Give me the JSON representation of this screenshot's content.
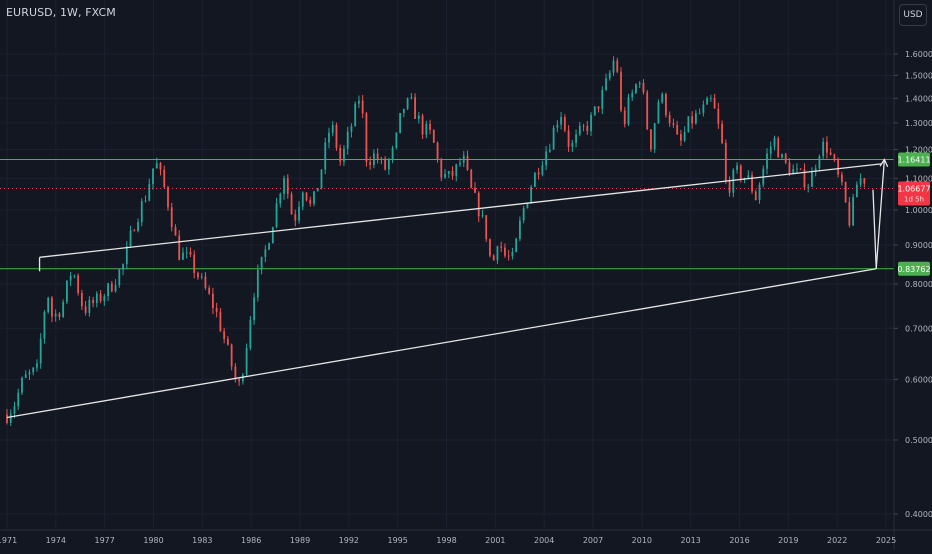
{
  "header": {
    "symbol_title": "EURUSD, 1W, FXCM",
    "currency_button": "USD"
  },
  "colors": {
    "background": "#131722",
    "up": "#26a69a",
    "down": "#ef5350",
    "level_line": "#4caf50",
    "trend_line": "#e6e6e6",
    "last_price": "#f23645"
  },
  "chart_data": {
    "type": "candlestick",
    "symbol": "EURUSD",
    "timeframe": "1W",
    "source": "FXCM",
    "x_axis": {
      "tick_labels": [
        "1971",
        "1974",
        "1977",
        "1980",
        "1983",
        "1986",
        "1989",
        "1992",
        "1995",
        "1998",
        "2001",
        "2004",
        "2007",
        "2010",
        "2013",
        "2016",
        "2019",
        "2022",
        "2025"
      ],
      "range": [
        1971,
        2025
      ]
    },
    "y_axis": {
      "scale": "log",
      "tick_labels": [
        "1.60000",
        "1.50000",
        "1.40000",
        "1.30000",
        "1.20000",
        "1.10000",
        "1.00000",
        "0.90000",
        "0.80000",
        "0.70000",
        "0.60000",
        "0.50000",
        "0.40000"
      ],
      "tick_values": [
        1.6,
        1.5,
        1.4,
        1.3,
        1.2,
        1.1,
        1.0,
        0.9,
        0.8,
        0.7,
        0.6,
        0.5,
        0.4
      ],
      "range": [
        0.385,
        1.8
      ]
    },
    "price_path": [
      [
        1971.0,
        0.54
      ],
      [
        1971.5,
        0.56
      ],
      [
        1972.0,
        0.6
      ],
      [
        1972.5,
        0.61
      ],
      [
        1973.0,
        0.62
      ],
      [
        1973.1,
        0.7
      ],
      [
        1973.5,
        0.78
      ],
      [
        1973.8,
        0.72
      ],
      [
        1974.4,
        0.75
      ],
      [
        1975.0,
        0.84
      ],
      [
        1975.7,
        0.74
      ],
      [
        1976.5,
        0.76
      ],
      [
        1977.3,
        0.79
      ],
      [
        1978.2,
        0.85
      ],
      [
        1978.8,
        0.96
      ],
      [
        1979.5,
        1.04
      ],
      [
        1980.1,
        1.16
      ],
      [
        1980.6,
        1.08
      ],
      [
        1981.0,
        1.0
      ],
      [
        1981.5,
        0.88
      ],
      [
        1982.2,
        0.86
      ],
      [
        1983.0,
        0.8
      ],
      [
        1983.8,
        0.74
      ],
      [
        1984.5,
        0.66
      ],
      [
        1985.2,
        0.58
      ],
      [
        1985.6,
        0.64
      ],
      [
        1986.2,
        0.79
      ],
      [
        1986.8,
        0.87
      ],
      [
        1987.5,
        1.0
      ],
      [
        1988.0,
        1.12
      ],
      [
        1988.6,
        0.96
      ],
      [
        1989.2,
        1.08
      ],
      [
        1989.7,
        1.0
      ],
      [
        1990.2,
        1.1
      ],
      [
        1990.9,
        1.3
      ],
      [
        1991.5,
        1.15
      ],
      [
        1992.2,
        1.3
      ],
      [
        1992.7,
        1.42
      ],
      [
        1993.1,
        1.16
      ],
      [
        1993.6,
        1.18
      ],
      [
        1994.2,
        1.13
      ],
      [
        1994.8,
        1.2
      ],
      [
        1995.3,
        1.36
      ],
      [
        1995.8,
        1.38
      ],
      [
        1996.5,
        1.28
      ],
      [
        1997.1,
        1.25
      ],
      [
        1997.6,
        1.12
      ],
      [
        1998.1,
        1.1
      ],
      [
        1998.5,
        1.12
      ],
      [
        1999.0,
        1.17
      ],
      [
        1999.5,
        1.06
      ],
      [
        2000.0,
        1.0
      ],
      [
        2000.5,
        0.92
      ],
      [
        2000.8,
        0.83
      ],
      [
        2001.1,
        0.92
      ],
      [
        2001.6,
        0.87
      ],
      [
        2002.1,
        0.86
      ],
      [
        2002.6,
        0.98
      ],
      [
        2003.2,
        1.08
      ],
      [
        2003.8,
        1.16
      ],
      [
        2004.3,
        1.22
      ],
      [
        2005.0,
        1.35
      ],
      [
        2005.6,
        1.2
      ],
      [
        2006.2,
        1.26
      ],
      [
        2006.8,
        1.3
      ],
      [
        2007.5,
        1.4
      ],
      [
        2008.0,
        1.5
      ],
      [
        2008.4,
        1.6
      ],
      [
        2008.8,
        1.27
      ],
      [
        2009.2,
        1.38
      ],
      [
        2009.9,
        1.5
      ],
      [
        2010.5,
        1.2
      ],
      [
        2011.1,
        1.42
      ],
      [
        2011.7,
        1.32
      ],
      [
        2012.3,
        1.21
      ],
      [
        2012.9,
        1.3
      ],
      [
        2013.6,
        1.34
      ],
      [
        2014.3,
        1.39
      ],
      [
        2014.9,
        1.23
      ],
      [
        2015.2,
        1.06
      ],
      [
        2015.8,
        1.12
      ],
      [
        2016.5,
        1.1
      ],
      [
        2017.0,
        1.04
      ],
      [
        2017.7,
        1.18
      ],
      [
        2018.1,
        1.24
      ],
      [
        2018.7,
        1.15
      ],
      [
        2019.4,
        1.12
      ],
      [
        2019.9,
        1.1
      ],
      [
        2020.3,
        1.08
      ],
      [
        2020.9,
        1.2
      ],
      [
        2021.3,
        1.22
      ],
      [
        2021.9,
        1.13
      ],
      [
        2022.3,
        1.06
      ],
      [
        2022.8,
        0.96
      ],
      [
        2023.2,
        1.08
      ],
      [
        2023.6,
        1.11
      ],
      [
        2023.9,
        1.06
      ]
    ],
    "horizontal_levels": [
      {
        "price": 1.16411,
        "label": "1.16411",
        "color": "#4caf50"
      },
      {
        "price": 0.83762,
        "label": "0.83762",
        "color": "#4caf50"
      }
    ],
    "last_price": {
      "price": 1.06677,
      "label": "1.06677",
      "countdown": "1d 5h",
      "color": "#f23645"
    },
    "trend_lines": [
      {
        "from": [
          1971.0,
          0.535
        ],
        "to": [
          2024.4,
          0.8376
        ]
      },
      {
        "from": [
          1973.0,
          0.867
        ],
        "to": [
          2024.7,
          1.149
        ]
      }
    ],
    "projection_arrows": [
      {
        "from": [
          2024.2,
          1.063
        ],
        "to": [
          2024.4,
          0.8376
        ],
        "style": "down"
      },
      {
        "from": [
          2024.4,
          0.8376
        ],
        "to": [
          2024.9,
          1.16411
        ],
        "style": "arrow-up"
      }
    ]
  }
}
